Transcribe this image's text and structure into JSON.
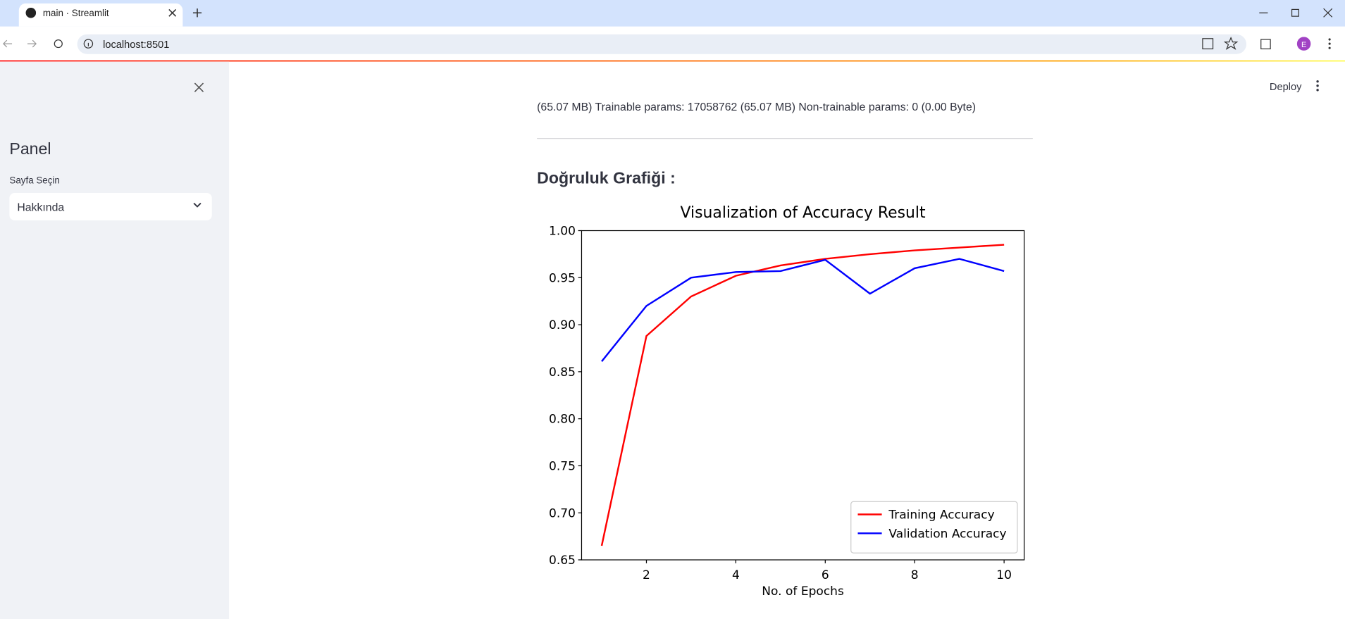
{
  "browser": {
    "tab_title": "main · Streamlit",
    "url": "localhost:8501",
    "avatar": "E"
  },
  "sidebar": {
    "title": "Panel",
    "select_label": "Sayfa Seçin",
    "select_value": "Hakkında"
  },
  "header": {
    "deploy": "Deploy"
  },
  "main": {
    "params_text": "(65.07 MB) Trainable params: 17058762 (65.07 MB) Non-trainable params: 0 (0.00 Byte)",
    "heading": "Doğruluk Grafiği :"
  },
  "chart_data": {
    "type": "line",
    "title": "Visualization of Accuracy Result",
    "x_label": "No. of Epochs",
    "x": [
      1,
      2,
      3,
      4,
      5,
      6,
      7,
      8,
      9,
      10
    ],
    "series": [
      {
        "name": "Training Accuracy",
        "color": "#ff0000",
        "values": [
          0.665,
          0.888,
          0.93,
          0.952,
          0.963,
          0.97,
          0.975,
          0.979,
          0.982,
          0.985
        ]
      },
      {
        "name": "Validation Accuracy",
        "color": "#0000ff",
        "values": [
          0.861,
          0.92,
          0.95,
          0.956,
          0.957,
          0.969,
          0.933,
          0.96,
          0.97,
          0.957
        ]
      }
    ],
    "xlim": [
      0.55,
      10.45
    ],
    "xticks": [
      2,
      4,
      6,
      8,
      10
    ],
    "ylim": [
      0.65,
      1.0
    ],
    "yticks": [
      0.65,
      {
        "value": 0.7,
        "label": "0.70"
      },
      0.75,
      {
        "value": 0.8,
        "label": "0.80"
      },
      0.85,
      {
        "value": 0.9,
        "label": "0.90"
      },
      0.95,
      {
        "value": 1.0,
        "label": "1.00"
      }
    ],
    "legend": "lower right"
  }
}
